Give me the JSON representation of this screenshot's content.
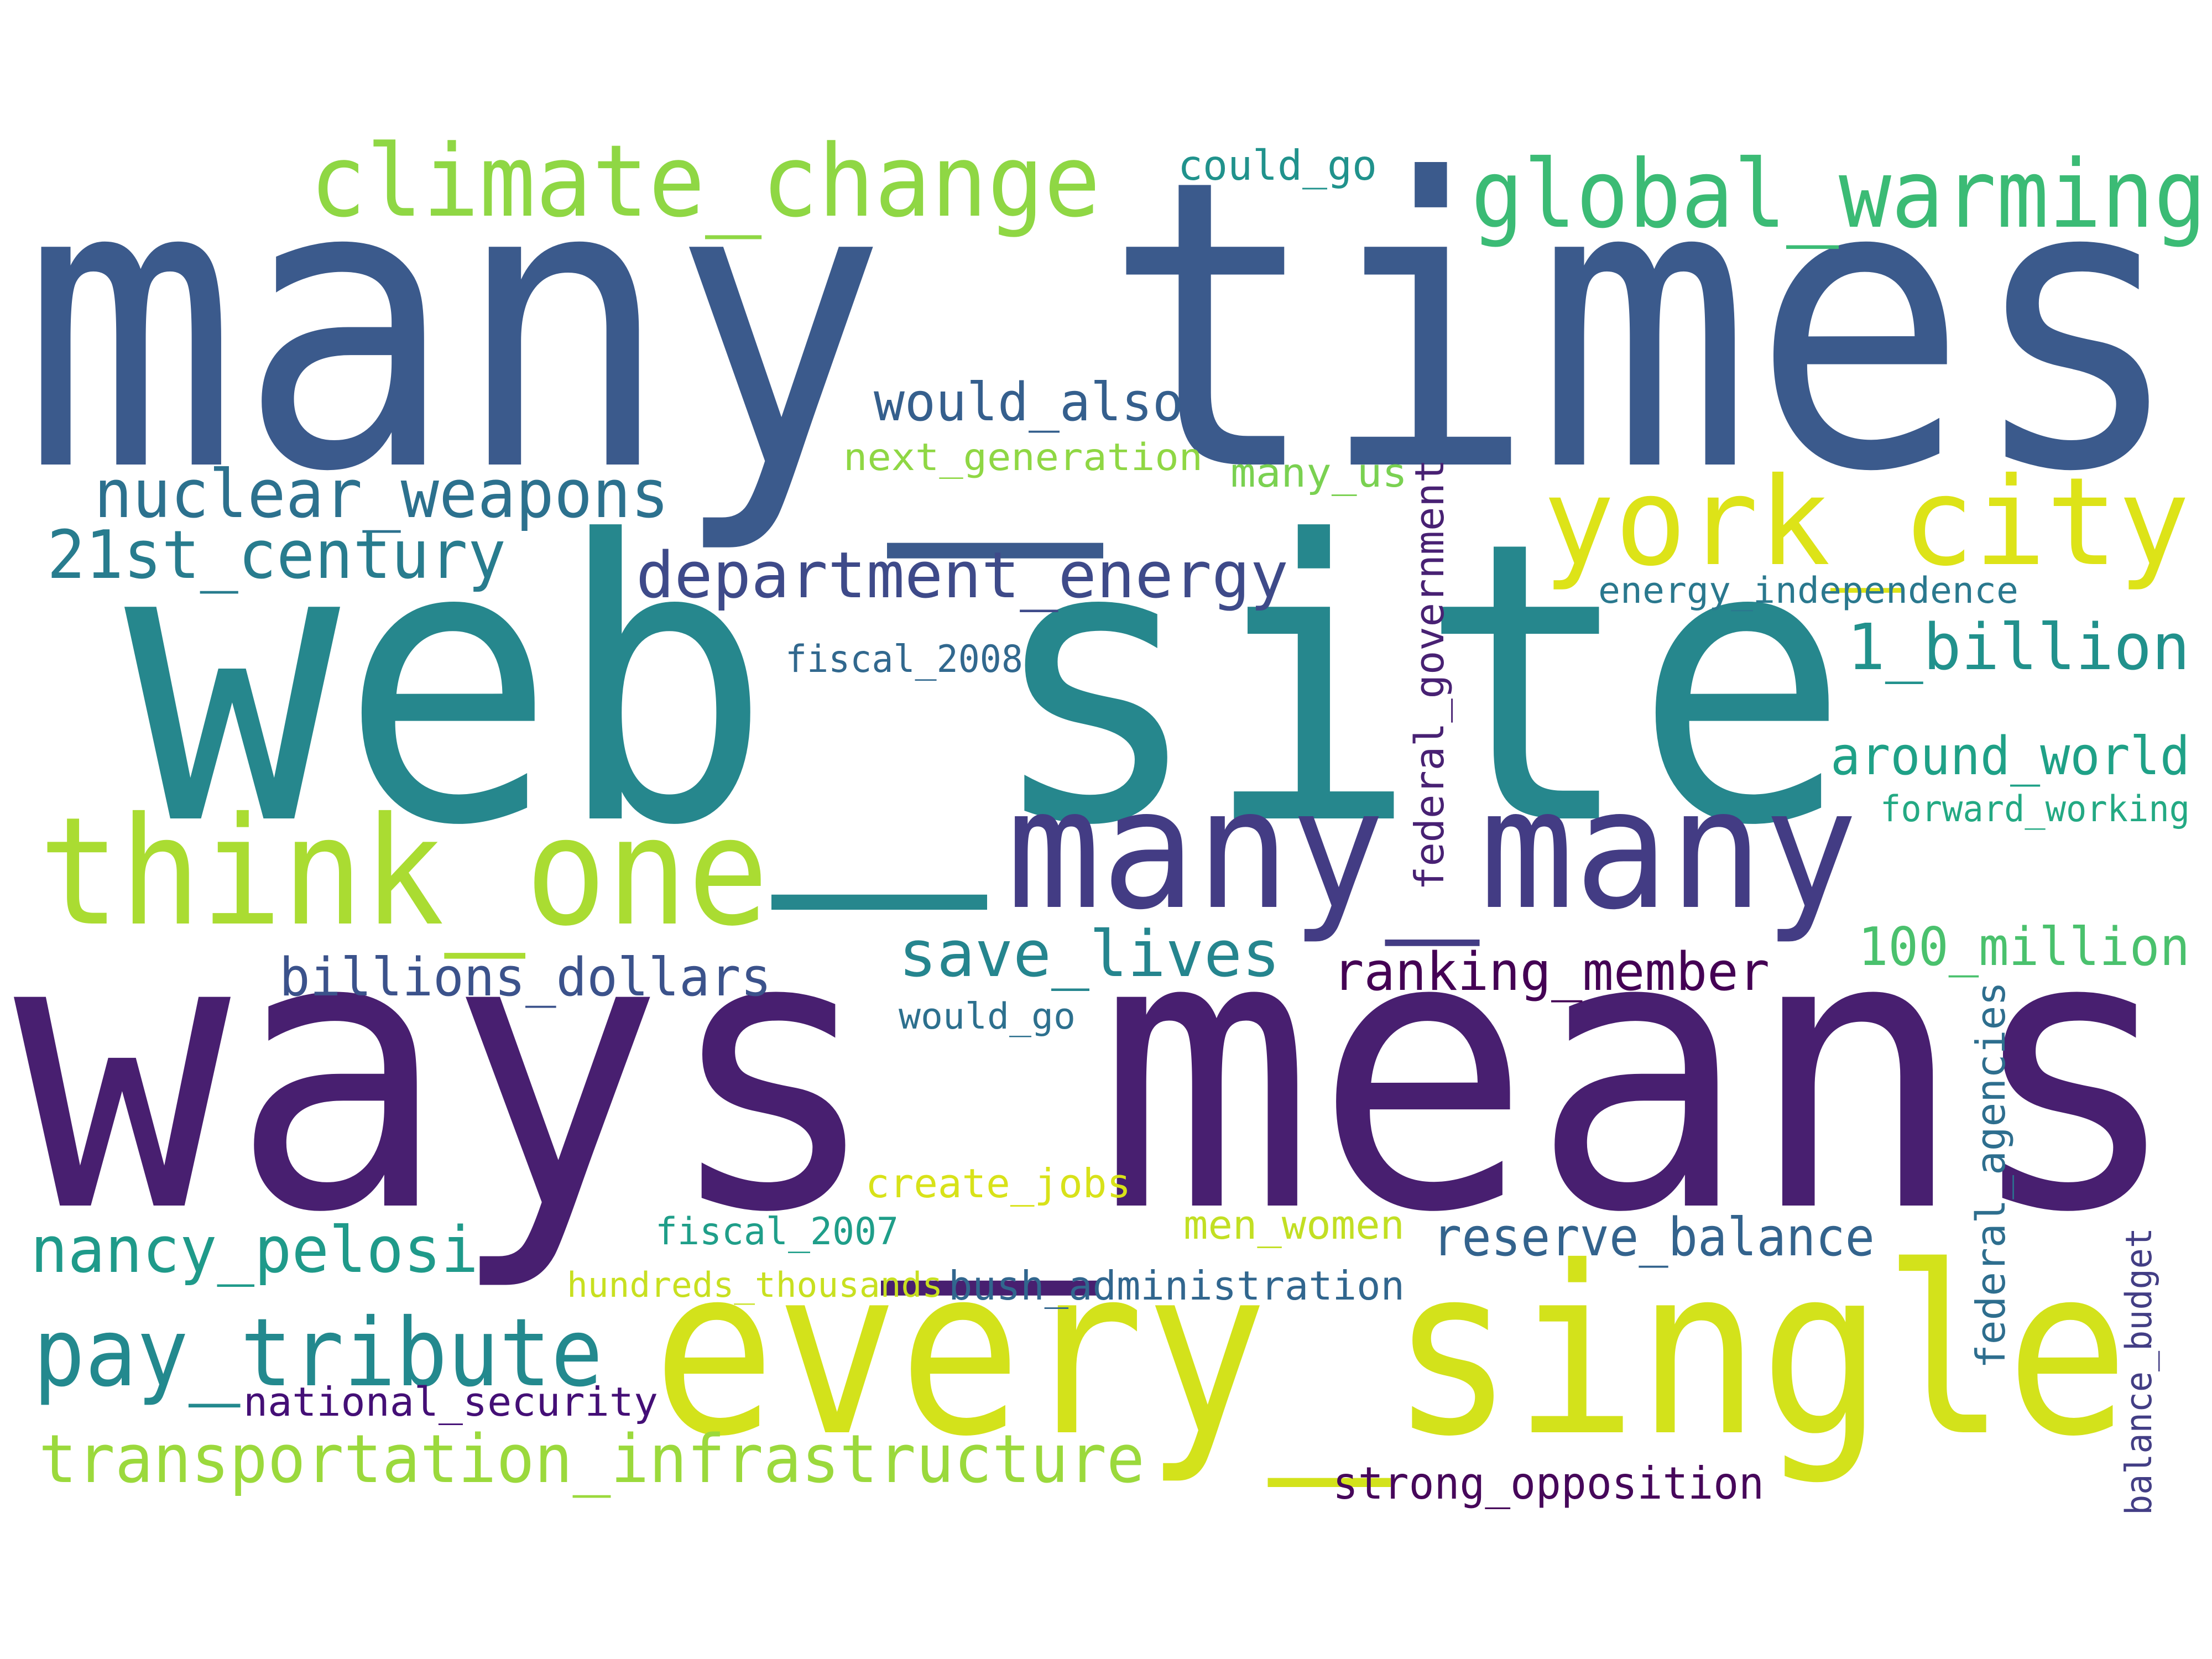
{
  "words": [
    {
      "text": "many_times",
      "color": "#3b5a8c"
    },
    {
      "text": "web_site",
      "color": "#26878d"
    },
    {
      "text": "ways_means",
      "color": "#481f70"
    },
    {
      "text": "every_single",
      "color": "#d3e21b"
    },
    {
      "text": "many_many",
      "color": "#433c84"
    },
    {
      "text": "think_one",
      "color": "#aadc32"
    },
    {
      "text": "climate_change",
      "color": "#8fd744"
    },
    {
      "text": "global_warming",
      "color": "#3bbb75"
    },
    {
      "text": "york_city",
      "color": "#dde318"
    },
    {
      "text": "could_go",
      "color": "#20928c"
    },
    {
      "text": "would_also",
      "color": "#355f8d"
    },
    {
      "text": "next_generation",
      "color": "#8fd744"
    },
    {
      "text": "many_us",
      "color": "#7ad151"
    },
    {
      "text": "nuclear_weapons",
      "color": "#2c718e"
    },
    {
      "text": "21st_century",
      "color": "#287c8e"
    },
    {
      "text": "department_energy",
      "color": "#3e4a89"
    },
    {
      "text": "energy_independence",
      "color": "#2a788e"
    },
    {
      "text": "fiscal_2008",
      "color": "#31688e"
    },
    {
      "text": "1_billion",
      "color": "#21918c"
    },
    {
      "text": "federal_government",
      "color": "#482173"
    },
    {
      "text": "around_world",
      "color": "#1fa187"
    },
    {
      "text": "forward_working",
      "color": "#23a983"
    },
    {
      "text": "save_lives",
      "color": "#25858e"
    },
    {
      "text": "billions_dollars",
      "color": "#3b528b"
    },
    {
      "text": "ranking_member",
      "color": "#440154"
    },
    {
      "text": "100_million",
      "color": "#4ac16d"
    },
    {
      "text": "would_go",
      "color": "#2d708e"
    },
    {
      "text": "federal_agencies",
      "color": "#2e6e8e"
    },
    {
      "text": "create_jobs",
      "color": "#d8e219"
    },
    {
      "text": "men_women",
      "color": "#c2df23"
    },
    {
      "text": "fiscal_2007",
      "color": "#1f9e89"
    },
    {
      "text": "nancy_pelosi",
      "color": "#1f9a8a"
    },
    {
      "text": "reserve_balance",
      "color": "#33638d"
    },
    {
      "text": "hundreds_thousands",
      "color": "#c8e020"
    },
    {
      "text": "bush_administration",
      "color": "#31668e"
    },
    {
      "text": "balance_budget",
      "color": "#433e85"
    },
    {
      "text": "pay_tribute",
      "color": "#23898e"
    },
    {
      "text": "national_security",
      "color": "#440f76"
    },
    {
      "text": "transportation_infrastructure",
      "color": "#9bd93c"
    },
    {
      "text": "strong_opposition",
      "color": "#46075a"
    }
  ]
}
